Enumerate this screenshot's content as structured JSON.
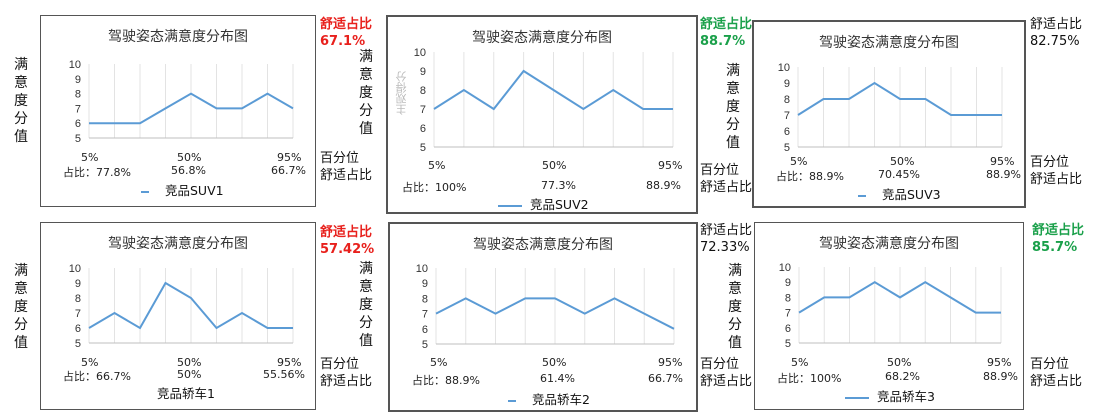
{
  "chart_data": [
    {
      "type": "line",
      "title": "驾驶姿态满意度分布图",
      "series": [
        {
          "name": "竞品SUV1",
          "values": [
            6,
            6,
            6,
            7,
            8,
            7,
            7,
            8,
            7
          ]
        }
      ],
      "ylim": [
        5,
        10
      ],
      "yticks": [
        5,
        6,
        7,
        8,
        9,
        10
      ],
      "xtick_labels": [
        "5%",
        "50%",
        "95%"
      ],
      "ratio_label": "占比：",
      "ratios": [
        "77.8%",
        "56.8%",
        "66.7%"
      ],
      "share_label": "舒适占比",
      "share_value": "67.1%",
      "share_color": "#e8201c",
      "y_axis_label": "满意度分值",
      "x_axis_label": [
        "百分位",
        "舒适占比"
      ],
      "grid": true
    },
    {
      "type": "line",
      "title": "驾驶姿态满意度分布图",
      "series": [
        {
          "name": "竞品SUV2",
          "values": [
            7,
            8,
            7,
            9,
            8,
            7,
            8,
            7,
            7
          ]
        }
      ],
      "ylim": [
        5,
        10
      ],
      "yticks": [
        5,
        6,
        7,
        8,
        9,
        10
      ],
      "xtick_labels": [
        "5%",
        "50%",
        "95%"
      ],
      "ratio_label": "占比：",
      "ratios": [
        "100%",
        "77.3%",
        "88.9%"
      ],
      "share_label": "舒适占比",
      "share_value": "88.7%",
      "share_color": "#1aa04a",
      "y_axis_label": "满意度分值",
      "ghost_label": "主观得分",
      "x_axis_label": [
        "百分位",
        "舒适占比"
      ],
      "grid": true
    },
    {
      "type": "line",
      "title": "驾驶姿态满意度分布图",
      "series": [
        {
          "name": "竞品SUV3",
          "values": [
            7,
            8,
            8,
            9,
            8,
            8,
            7,
            7,
            7
          ]
        }
      ],
      "ylim": [
        5,
        10
      ],
      "yticks": [
        5,
        6,
        7,
        8,
        9,
        10
      ],
      "xtick_labels": [
        "5%",
        "50%",
        "95%"
      ],
      "ratio_label": "占比：",
      "ratios": [
        "88.9%",
        "70.45%",
        "88.9%"
      ],
      "share_label": "舒适占比",
      "share_value": "82.75%",
      "share_color": "#111111",
      "y_axis_label": "满意度分值",
      "x_axis_label": [
        "百分位",
        "舒适占比"
      ],
      "grid": true
    },
    {
      "type": "line",
      "title": "驾驶姿态满意度分布图",
      "series": [
        {
          "name": "竞品轿车1",
          "values": [
            6,
            7,
            6,
            9,
            8,
            6,
            7,
            6,
            6
          ]
        }
      ],
      "ylim": [
        5,
        10
      ],
      "yticks": [
        5,
        6,
        7,
        8,
        9,
        10
      ],
      "xtick_labels": [
        "5%",
        "50%",
        "95%"
      ],
      "extra_tick": "50%",
      "ratio_label": "占比：",
      "ratios": [
        "66.7%",
        "",
        "55.56%"
      ],
      "share_label": "舒适占比",
      "share_value": "57.42%",
      "share_color": "#e8201c",
      "y_axis_label": "满意度分值",
      "x_axis_label": [
        "百分位",
        "舒适占比"
      ],
      "grid": true
    },
    {
      "type": "line",
      "title": "驾驶姿态满意度分布图",
      "series": [
        {
          "name": "竞品轿车2",
          "values": [
            7,
            8,
            7,
            8,
            8,
            7,
            8,
            7,
            6
          ]
        }
      ],
      "ylim": [
        5,
        10
      ],
      "yticks": [
        5,
        6,
        7,
        8,
        9,
        10
      ],
      "xtick_labels": [
        "5%",
        "50%",
        "95%"
      ],
      "ratio_label": "占比：",
      "ratios": [
        "88.9%",
        "61.4%",
        "66.7%"
      ],
      "share_label": "舒适占比",
      "share_value": "72.33%",
      "share_color": "#111111",
      "y_axis_label": "满意度分值",
      "x_axis_label": [
        "百分位",
        "舒适占比"
      ],
      "grid": true
    },
    {
      "type": "line",
      "title": "驾驶姿态满意度分布图",
      "series": [
        {
          "name": "竞品轿车3",
          "values": [
            7,
            8,
            8,
            9,
            8,
            9,
            8,
            7,
            7
          ]
        }
      ],
      "ylim": [
        5,
        10
      ],
      "yticks": [
        5,
        6,
        7,
        8,
        9,
        10
      ],
      "xtick_labels": [
        "5%",
        "50%",
        "95%"
      ],
      "ratio_label": "占比：",
      "ratios": [
        "100%",
        "68.2%",
        "88.9%"
      ],
      "share_label": "舒适占比",
      "share_value": "85.7%",
      "share_color": "#1aa04a",
      "y_axis_label": "满意度分值",
      "x_axis_label": [
        "百分位",
        "舒适占比"
      ],
      "grid": true
    }
  ]
}
